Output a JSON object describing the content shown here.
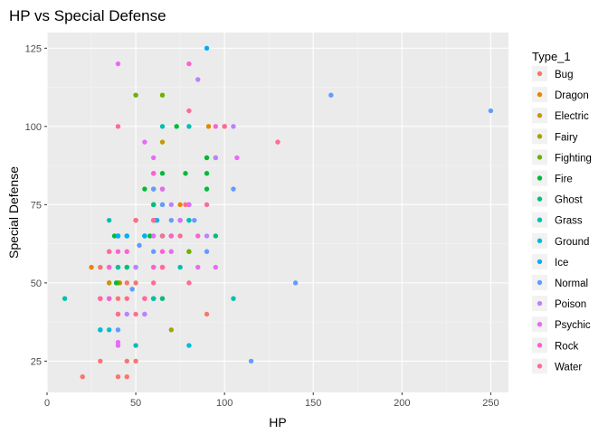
{
  "chart_data": {
    "type": "scatter",
    "title": "HP vs Special Defense",
    "xlabel": "HP",
    "ylabel": "Special Defense",
    "xlim": [
      0,
      260
    ],
    "ylim": [
      15,
      130
    ],
    "x_ticks": [
      0,
      50,
      100,
      150,
      200,
      250
    ],
    "y_ticks": [
      25,
      50,
      75,
      100,
      125
    ],
    "grid": true,
    "legend_title": "Type_1",
    "legend_position": "right",
    "series": [
      {
        "name": "Bug",
        "color": "#F8766D",
        "points": [
          [
            40,
            20
          ],
          [
            20,
            20
          ],
          [
            45,
            20
          ],
          [
            30,
            25
          ],
          [
            45,
            25
          ],
          [
            50,
            25
          ],
          [
            60,
            45
          ],
          [
            65,
            45
          ],
          [
            65,
            55
          ],
          [
            40,
            45
          ],
          [
            45,
            50
          ],
          [
            90,
            40
          ],
          [
            35,
            55
          ],
          [
            50,
            50
          ],
          [
            30,
            55
          ]
        ]
      },
      {
        "name": "Dragon",
        "color": "#E58700",
        "points": [
          [
            61,
            70
          ],
          [
            91,
            100
          ],
          [
            41,
            50
          ],
          [
            25,
            55
          ],
          [
            35,
            50
          ],
          [
            75,
            75
          ]
        ]
      },
      {
        "name": "Electric",
        "color": "#C99800",
        "points": [
          [
            35,
            50
          ],
          [
            60,
            70
          ],
          [
            50,
            70
          ],
          [
            65,
            95
          ],
          [
            90,
            90
          ],
          [
            40,
            55
          ],
          [
            70,
            65
          ]
        ]
      },
      {
        "name": "Fairy",
        "color": "#A3A500",
        "points": [
          [
            70,
            35
          ],
          [
            95,
            90
          ],
          [
            80,
            60
          ],
          [
            40,
            65
          ],
          [
            50,
            70
          ]
        ]
      },
      {
        "name": "Fighting",
        "color": "#6BB100",
        "points": [
          [
            50,
            110
          ],
          [
            65,
            110
          ],
          [
            70,
            65
          ],
          [
            80,
            60
          ],
          [
            55,
            65
          ],
          [
            40,
            50
          ],
          [
            60,
            75
          ]
        ]
      },
      {
        "name": "Fire",
        "color": "#00BA38",
        "points": [
          [
            39,
            50
          ],
          [
            58,
            65
          ],
          [
            78,
            85
          ],
          [
            73,
            100
          ],
          [
            90,
            90
          ],
          [
            65,
            85
          ],
          [
            90,
            80
          ],
          [
            90,
            85
          ],
          [
            65,
            80
          ],
          [
            45,
            55
          ],
          [
            55,
            80
          ],
          [
            80,
            70
          ],
          [
            60,
            75
          ],
          [
            38,
            65
          ],
          [
            40,
            65
          ]
        ]
      },
      {
        "name": "Ghost",
        "color": "#00BF7D",
        "points": [
          [
            30,
            35
          ],
          [
            45,
            55
          ],
          [
            60,
            75
          ],
          [
            65,
            45
          ],
          [
            60,
            45
          ],
          [
            75,
            70
          ],
          [
            95,
            65
          ]
        ]
      },
      {
        "name": "Grass",
        "color": "#00C0AF",
        "points": [
          [
            45,
            65
          ],
          [
            60,
            80
          ],
          [
            80,
            100
          ],
          [
            50,
            30
          ],
          [
            60,
            45
          ],
          [
            65,
            65
          ],
          [
            80,
            70
          ],
          [
            35,
            70
          ],
          [
            75,
            55
          ],
          [
            105,
            45
          ],
          [
            40,
            55
          ],
          [
            65,
            100
          ],
          [
            55,
            65
          ],
          [
            10,
            45
          ]
        ]
      },
      {
        "name": "Ground",
        "color": "#00BCD8",
        "points": [
          [
            80,
            30
          ],
          [
            50,
            55
          ],
          [
            35,
            35
          ],
          [
            60,
            70
          ],
          [
            65,
            65
          ],
          [
            30,
            35
          ]
        ]
      },
      {
        "name": "Ice",
        "color": "#00B0F6",
        "points": [
          [
            90,
            125
          ],
          [
            65,
            75
          ],
          [
            80,
            75
          ],
          [
            62,
            70
          ],
          [
            40,
            65
          ],
          [
            35,
            45
          ],
          [
            55,
            65
          ],
          [
            45,
            65
          ]
        ]
      },
      {
        "name": "Normal",
        "color": "#619CFF",
        "points": [
          [
            250,
            105
          ],
          [
            160,
            110
          ],
          [
            140,
            50
          ],
          [
            115,
            25
          ],
          [
            105,
            80
          ],
          [
            90,
            60
          ],
          [
            80,
            75
          ],
          [
            83,
            70
          ],
          [
            60,
            60
          ],
          [
            65,
            65
          ],
          [
            55,
            40
          ],
          [
            48,
            48
          ],
          [
            52,
            62
          ],
          [
            70,
            70
          ],
          [
            60,
            80
          ],
          [
            40,
            35
          ],
          [
            75,
            70
          ],
          [
            65,
            75
          ]
        ]
      },
      {
        "name": "Poison",
        "color": "#B983FF",
        "points": [
          [
            85,
            115
          ],
          [
            105,
            100
          ],
          [
            80,
            75
          ],
          [
            90,
            65
          ],
          [
            95,
            90
          ],
          [
            60,
            70
          ],
          [
            55,
            40
          ],
          [
            70,
            75
          ],
          [
            60,
            55
          ],
          [
            45,
            40
          ],
          [
            50,
            55
          ],
          [
            35,
            55
          ]
        ]
      },
      {
        "name": "Psychic",
        "color": "#E76BF3",
        "points": [
          [
            40,
            120
          ],
          [
            100,
            100
          ],
          [
            107,
            90
          ],
          [
            60,
            90
          ],
          [
            55,
            95
          ],
          [
            35,
            60
          ],
          [
            85,
            55
          ],
          [
            60,
            85
          ],
          [
            70,
            60
          ],
          [
            50,
            70
          ],
          [
            40,
            30
          ],
          [
            30,
            45
          ],
          [
            35,
            45
          ],
          [
            65,
            80
          ],
          [
            60,
            65
          ],
          [
            95,
            55
          ],
          [
            75,
            70
          ],
          [
            80,
            75
          ],
          [
            40,
            31
          ]
        ]
      },
      {
        "name": "Rock",
        "color": "#FD61D1",
        "points": [
          [
            80,
            120
          ],
          [
            95,
            100
          ],
          [
            60,
            85
          ],
          [
            65,
            60
          ],
          [
            60,
            55
          ],
          [
            45,
            60
          ],
          [
            70,
            65
          ],
          [
            85,
            65
          ],
          [
            60,
            70
          ],
          [
            35,
            45
          ],
          [
            40,
            40
          ],
          [
            55,
            45
          ],
          [
            65,
            55
          ],
          [
            35,
            55
          ],
          [
            30,
            45
          ],
          [
            40,
            60
          ]
        ]
      },
      {
        "name": "Water",
        "color": "#FF6C91",
        "points": [
          [
            130,
            95
          ],
          [
            80,
            105
          ],
          [
            40,
            100
          ],
          [
            100,
            100
          ],
          [
            60,
            70
          ],
          [
            80,
            50
          ],
          [
            65,
            65
          ],
          [
            45,
            45
          ],
          [
            50,
            70
          ],
          [
            30,
            45
          ],
          [
            55,
            45
          ],
          [
            65,
            55
          ],
          [
            75,
            65
          ],
          [
            90,
            75
          ],
          [
            35,
            60
          ],
          [
            40,
            40
          ],
          [
            60,
            50
          ],
          [
            50,
            40
          ],
          [
            78,
            75
          ]
        ]
      }
    ]
  }
}
